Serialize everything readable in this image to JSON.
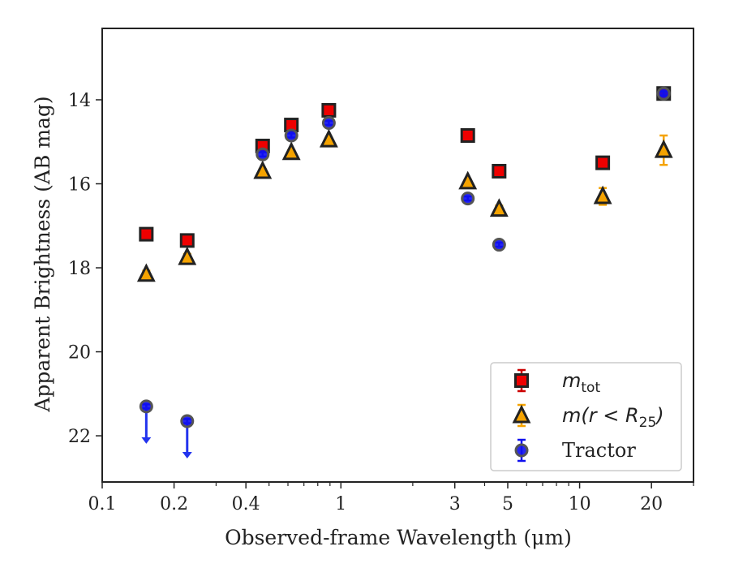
{
  "chart_data": {
    "type": "scatter",
    "title": "",
    "xlabel": "Observed-frame Wavelength (μm)",
    "ylabel": "Apparent Brightness (AB mag)",
    "xscale": "log",
    "xlim": [
      0.1,
      30
    ],
    "ylim": [
      23.1,
      12.3
    ],
    "y_inverted": true,
    "x_major_ticks": [
      0.1,
      0.2,
      0.4,
      1,
      3,
      5,
      10,
      20
    ],
    "x_tick_labels": [
      "0.1",
      "0.2",
      "0.4",
      "1",
      "3",
      "5",
      "10",
      "20"
    ],
    "y_major_ticks": [
      14,
      16,
      18,
      20,
      22
    ],
    "y_tick_labels": [
      "14",
      "16",
      "18",
      "20",
      "22"
    ],
    "legend_position": "lower-right",
    "series": [
      {
        "name": "m_tot",
        "legend_label": "m",
        "legend_subscript": "tot",
        "marker": "square",
        "color": "#ee0000",
        "edge_color": "#222222",
        "errbar_color": "#cc0000",
        "x": [
          0.153,
          0.227,
          0.47,
          0.62,
          0.89,
          3.4,
          4.6,
          12.5,
          22.5
        ],
        "y": [
          17.2,
          17.35,
          15.1,
          14.6,
          14.25,
          14.85,
          15.7,
          15.5,
          13.85
        ],
        "yerr": [
          0.05,
          0.05,
          0.05,
          0.05,
          0.05,
          0.05,
          0.05,
          0.05,
          0.05
        ]
      },
      {
        "name": "m(r < R_25)",
        "legend_label": "m(r < R",
        "legend_subscript": "25",
        "legend_suffix": ")",
        "marker": "triangle",
        "color": "#f5a300",
        "edge_color": "#222222",
        "errbar_color": "#f5a300",
        "x": [
          0.153,
          0.227,
          0.47,
          0.62,
          0.89,
          3.4,
          4.6,
          12.5,
          22.5
        ],
        "y": [
          18.15,
          17.75,
          15.7,
          15.25,
          14.95,
          15.95,
          16.6,
          16.3,
          15.2
        ],
        "yerr": [
          0.08,
          0.08,
          0.05,
          0.05,
          0.05,
          0.05,
          0.08,
          0.2,
          0.35
        ]
      },
      {
        "name": "Tractor",
        "legend_label": "Tractor",
        "marker": "circle",
        "color": "#1010ee",
        "edge_color": "#555555",
        "errbar_color": "#1010ee",
        "x": [
          0.153,
          0.227,
          0.47,
          0.62,
          0.89,
          3.4,
          4.6,
          22.5
        ],
        "y": [
          21.3,
          21.65,
          15.3,
          14.85,
          14.55,
          16.35,
          17.45,
          13.85
        ],
        "yerr": [
          0.05,
          0.05,
          0.05,
          0.05,
          0.05,
          0.05,
          0.05,
          0.05
        ],
        "upper_limits": [
          true,
          true,
          false,
          false,
          false,
          false,
          false,
          false
        ]
      }
    ]
  }
}
